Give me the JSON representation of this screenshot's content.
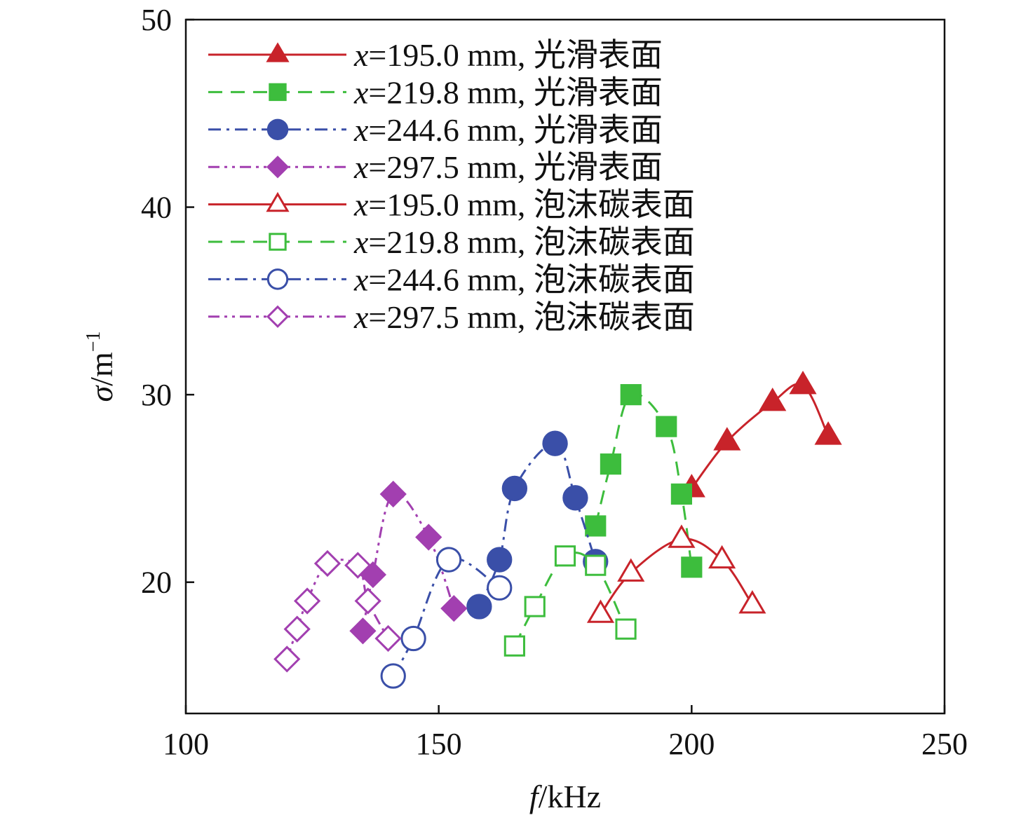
{
  "chart_data": {
    "type": "line",
    "title": "",
    "xlabel": {
      "var": "f",
      "unit": "/kHz"
    },
    "ylabel": {
      "var": "σ",
      "unit": "/m",
      "sup": "−1"
    },
    "xlim": [
      100,
      250
    ],
    "ylim": [
      13,
      50
    ],
    "xticks": [
      "100",
      "150",
      "200",
      "250"
    ],
    "yticks": [
      "20",
      "30",
      "40",
      "50"
    ],
    "legend_position": "top-left",
    "series": [
      {
        "name": "x=195.0 mm, 光滑表面",
        "var": "x",
        "text": "=195.0 mm, 光滑表面",
        "color": "#c8232a",
        "dash": "solid",
        "marker": "triangle",
        "filled": true,
        "x": [
          200,
          207,
          216,
          222,
          227
        ],
        "y": [
          25.0,
          27.5,
          29.6,
          30.5,
          27.8
        ]
      },
      {
        "name": "x=219.8 mm, 光滑表面",
        "var": "x",
        "text": "=219.8 mm, 光滑表面",
        "color": "#3dbd3d",
        "dash": "dash",
        "marker": "square",
        "filled": true,
        "x": [
          181,
          184,
          188,
          195,
          198,
          200
        ],
        "y": [
          23.0,
          26.3,
          30.0,
          28.3,
          24.7,
          20.8
        ]
      },
      {
        "name": "x=244.6 mm, 光滑表面",
        "var": "x",
        "text": "=244.6 mm, 光滑表面",
        "color": "#3a4fa8",
        "dash": "dashdot",
        "marker": "circle",
        "filled": true,
        "x": [
          158,
          162,
          165,
          173,
          177,
          181
        ],
        "y": [
          18.7,
          21.2,
          25.0,
          27.4,
          24.5,
          21.1
        ]
      },
      {
        "name": "x=297.5 mm, 光滑表面",
        "var": "x",
        "text": "=297.5 mm, 光滑表面",
        "color": "#a23fb0",
        "dash": "dashdotdot",
        "marker": "diamond",
        "filled": true,
        "x": [
          135,
          137,
          141,
          148,
          153
        ],
        "y": [
          17.4,
          20.4,
          24.7,
          22.4,
          18.6
        ]
      },
      {
        "name": "x=195.0 mm, 泡沫碳表面",
        "var": "x",
        "text": "=195.0 mm, 泡沫碳表面",
        "color": "#c8232a",
        "dash": "solid",
        "marker": "triangle",
        "filled": false,
        "x": [
          182,
          188,
          198,
          206,
          212
        ],
        "y": [
          18.3,
          20.5,
          22.3,
          21.2,
          18.8
        ]
      },
      {
        "name": "x=219.8 mm, 泡沫碳表面",
        "var": "x",
        "text": "=219.8 mm, 泡沫碳表面",
        "color": "#3dbd3d",
        "dash": "dash",
        "marker": "square",
        "filled": false,
        "x": [
          165,
          169,
          175,
          181,
          187
        ],
        "y": [
          16.6,
          18.7,
          21.4,
          20.9,
          17.5
        ]
      },
      {
        "name": "x=244.6 mm, 泡沫碳表面",
        "var": "x",
        "text": "=244.6 mm, 泡沫碳表面",
        "color": "#3a4fa8",
        "dash": "dashdot",
        "marker": "circle",
        "filled": false,
        "x": [
          141,
          145,
          152,
          162
        ],
        "y": [
          15.0,
          17.0,
          21.2,
          19.7
        ]
      },
      {
        "name": "x=297.5 mm, 泡沫碳表面",
        "var": "x",
        "text": "=297.5 mm, 泡沫碳表面",
        "color": "#a23fb0",
        "dash": "dashdotdot",
        "marker": "diamond",
        "filled": false,
        "x": [
          120,
          122,
          124,
          128,
          134,
          136,
          140
        ],
        "y": [
          15.9,
          17.5,
          19.0,
          21.0,
          20.9,
          19.0,
          17.0
        ]
      }
    ]
  }
}
